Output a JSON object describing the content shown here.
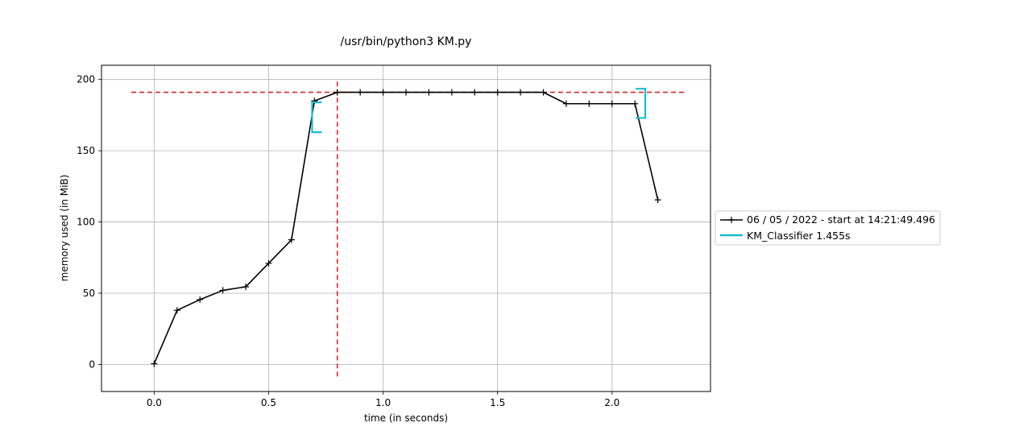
{
  "chart_data": {
    "type": "line",
    "title": "/usr/bin/python3 KM.py",
    "xlabel": "time (in seconds)",
    "ylabel": "memory used (in MiB)",
    "xlim": [
      -0.23,
      2.43
    ],
    "ylim": [
      -19,
      210
    ],
    "xticks": [
      0.0,
      0.5,
      1.0,
      1.5,
      2.0
    ],
    "xtick_labels": [
      "0.0",
      "0.5",
      "1.0",
      "1.5",
      "2.0"
    ],
    "yticks": [
      0,
      50,
      100,
      150,
      200
    ],
    "ytick_labels": [
      "0",
      "50",
      "100",
      "150",
      "200"
    ],
    "grid": true,
    "legend_position": "outside-right",
    "series": [
      {
        "name": "06 / 05 / 2022 - start at 14:21:49.496",
        "color": "#000000",
        "marker": "plus",
        "x": [
          0.0,
          0.1,
          0.2,
          0.3,
          0.4,
          0.5,
          0.6,
          0.7,
          0.8,
          0.9,
          1.0,
          1.1,
          1.2,
          1.3,
          1.4,
          1.5,
          1.6,
          1.7,
          1.8,
          1.9,
          2.0,
          2.1,
          2.2
        ],
        "y": [
          0.5,
          38,
          45.5,
          52,
          54.5,
          71,
          87.5,
          185,
          191,
          191,
          191,
          191,
          191,
          191,
          191,
          191,
          191,
          191,
          183,
          183,
          183,
          183,
          115.5
        ]
      }
    ],
    "function_brackets": [
      {
        "name": "KM_Classifier 1.455s",
        "color": "#17becf",
        "start_time": 0.69,
        "end_time": 2.145,
        "start_range": [
          163,
          184
        ],
        "end_range": [
          173,
          193.5
        ]
      }
    ],
    "annotations": {
      "max_memory_hline": {
        "y": 191,
        "x_range": [
          -0.1,
          2.32
        ],
        "color": "#d62728",
        "style": "dashed"
      },
      "max_memory_vline": {
        "x": 0.8,
        "y_range": [
          -8.5,
          200.5
        ],
        "color": "#d62728",
        "style": "dashed"
      }
    }
  }
}
